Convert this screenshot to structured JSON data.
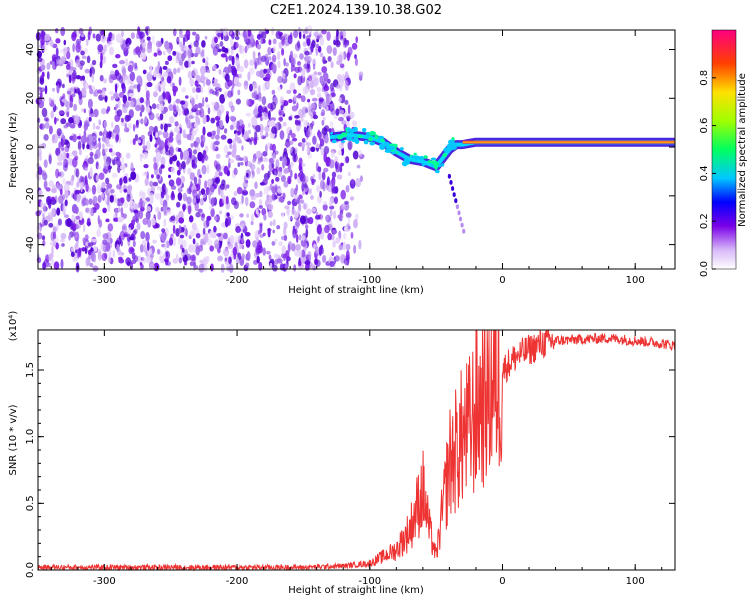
{
  "title": "C2E1.2024.139.10.38.G02",
  "colors": {
    "snr_line": "#ee3333",
    "signal_low": "#7a1ae8",
    "signal_core": "#2a00d8",
    "signal_high": "#ff3030",
    "background": "#ffffff"
  },
  "chart_data": [
    {
      "type": "heatmap",
      "xlabel": "Height of straight line (km)",
      "ylabel": "Frequency (Hz)",
      "xlim": [
        -350,
        130
      ],
      "ylim": [
        -50,
        48
      ],
      "xticks": [
        -300,
        -200,
        -100,
        0,
        100
      ],
      "yticks": [
        -40,
        -20,
        0,
        20,
        40
      ],
      "xtick_labels": [
        "-300",
        "-200",
        "-100",
        "0",
        "100"
      ],
      "ytick_labels": [
        "-40",
        "-20",
        "0",
        "20",
        "40"
      ],
      "colorbar": {
        "label": "Normalized spectral amplitude",
        "range": [
          0,
          1
        ],
        "ticks": [
          0.0,
          0.2,
          0.4,
          0.6,
          0.8
        ],
        "tick_labels": [
          "0.0",
          "0.2",
          "0.4",
          "0.6",
          "0.8"
        ]
      },
      "noise_region_x": [
        -350,
        -115
      ],
      "signal_track": {
        "x": [
          -130,
          -115,
          -100,
          -90,
          -80,
          -70,
          -60,
          -50,
          -40,
          -35,
          -30,
          -20,
          -10,
          0,
          20,
          40,
          60,
          80,
          100,
          130
        ],
        "y": [
          4,
          5,
          4,
          2,
          -2,
          -5,
          -6,
          -8,
          -1,
          1,
          1,
          2,
          2,
          2,
          2,
          2,
          2,
          2,
          2,
          2
        ]
      }
    },
    {
      "type": "line",
      "xlabel": "Height of straight line (km)",
      "ylabel": "SNR (10 * v/v)",
      "multiplier": "(x10⁴)",
      "xlim": [
        -350,
        130
      ],
      "ylim": [
        0,
        1.8
      ],
      "xticks": [
        -300,
        -200,
        -100,
        0,
        100
      ],
      "yticks": [
        0.0,
        0.5,
        1.0,
        1.5
      ],
      "xtick_labels": [
        "-300",
        "-200",
        "-100",
        "0",
        "100"
      ],
      "ytick_labels": [
        "0.0",
        "0.5",
        "1.0",
        "1.5"
      ],
      "series": [
        {
          "x": [
            -350,
            -300,
            -250,
            -200,
            -150,
            -120,
            -100,
            -90,
            -80,
            -70,
            -65,
            -60,
            -55,
            -50,
            -45,
            -40,
            -35,
            -30,
            -25,
            -20,
            -15,
            -10,
            -5,
            0,
            10,
            20,
            30,
            40,
            60,
            80,
            100,
            120,
            130
          ],
          "values": [
            0.02,
            0.02,
            0.02,
            0.02,
            0.02,
            0.03,
            0.05,
            0.1,
            0.15,
            0.3,
            0.45,
            0.6,
            0.3,
            0.1,
            0.45,
            0.8,
            0.9,
            1.0,
            1.05,
            1.2,
            1.3,
            1.4,
            1.45,
            1.5,
            1.6,
            1.65,
            1.7,
            1.72,
            1.73,
            1.74,
            1.72,
            1.7,
            1.68
          ]
        }
      ]
    }
  ]
}
